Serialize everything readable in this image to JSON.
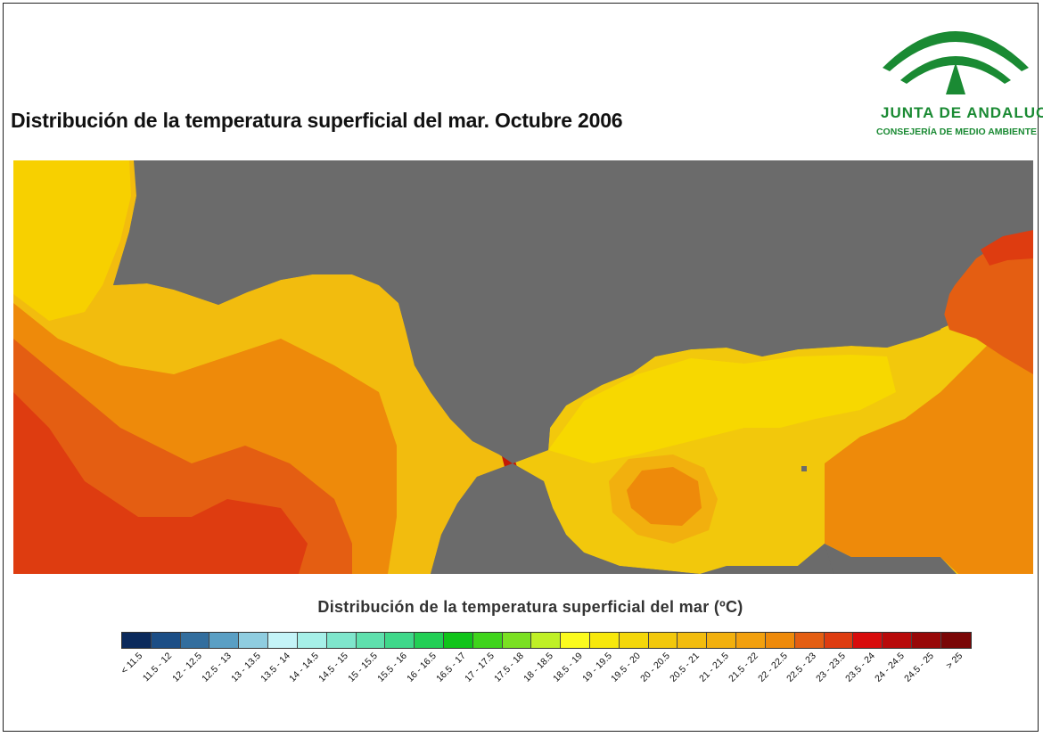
{
  "title": "Distribución de la temperatura superficial del mar. Octubre 2006",
  "logo": {
    "name": "JUNTA DE ANDALUCIA",
    "subtitle": "CONSEJERÍA DE MEDIO AMBIENTE",
    "color": "#1a8a33"
  },
  "map": {
    "land_color": "#6b6b6b",
    "region_colors": {
      "cool": "#f7d000",
      "mid": "#f4a800",
      "warm": "#ef8200",
      "hot": "#e25a10",
      "hottest": "#c21a06"
    }
  },
  "legend": {
    "title": "Distribución de la temperatura superficial del mar",
    "unit": "(ºC)",
    "classes": [
      {
        "label": "< 11.5",
        "color": "#0b2a5c"
      },
      {
        "label": "11.5 - 12",
        "color": "#1c4e86"
      },
      {
        "label": "12 - 12.5",
        "color": "#336e9e"
      },
      {
        "label": "12.5 - 13",
        "color": "#5a9fc4"
      },
      {
        "label": "13 - 13.5",
        "color": "#8fcde0"
      },
      {
        "label": "13.5 - 14",
        "color": "#c4f4f8"
      },
      {
        "label": "14 - 14.5",
        "color": "#a6f0e8"
      },
      {
        "label": "14.5 - 15",
        "color": "#7fe6cc"
      },
      {
        "label": "15 - 15.5",
        "color": "#5fe0ad"
      },
      {
        "label": "15.5 - 16",
        "color": "#3fd88a"
      },
      {
        "label": "16 - 16.5",
        "color": "#22cf55"
      },
      {
        "label": "16.5 - 17",
        "color": "#10c41a"
      },
      {
        "label": "17 - 17.5",
        "color": "#3fd41c"
      },
      {
        "label": "17.5 - 18",
        "color": "#7ae022"
      },
      {
        "label": "18 - 18.5",
        "color": "#bff026"
      },
      {
        "label": "18.5 - 19",
        "color": "#fbfb1e"
      },
      {
        "label": "19 - 19.5",
        "color": "#f7e80c"
      },
      {
        "label": "19.5 - 20",
        "color": "#f4d70a"
      },
      {
        "label": "20 - 20.5",
        "color": "#f2c80c"
      },
      {
        "label": "20.5 - 21",
        "color": "#f2bc0e"
      },
      {
        "label": "21 - 21.5",
        "color": "#f2b00e"
      },
      {
        "label": "21.5 - 22",
        "color": "#f2a00e"
      },
      {
        "label": "22 - 22.5",
        "color": "#ee8a0a"
      },
      {
        "label": "22.5 - 23",
        "color": "#e45e12"
      },
      {
        "label": "23 - 23.5",
        "color": "#de3c10"
      },
      {
        "label": "23.5 - 24",
        "color": "#d80c0c"
      },
      {
        "label": "24 - 24.5",
        "color": "#b80a0a"
      },
      {
        "label": "24.5 - 25",
        "color": "#980808"
      },
      {
        "label": "> 25",
        "color": "#7a0606"
      }
    ]
  }
}
